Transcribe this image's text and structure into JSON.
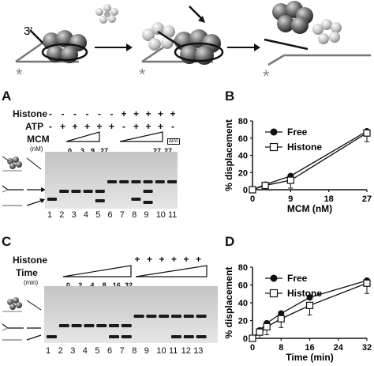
{
  "top_schematic": {
    "three_prime_label": "3'",
    "star_label": "*"
  },
  "panel_A": {
    "letter": "A",
    "rows": [
      {
        "label": "Histone",
        "signs": [
          "-",
          "-",
          "-",
          "-",
          "-",
          "-",
          "+",
          "+",
          "+",
          "+",
          "+",
          "+"
        ]
      },
      {
        "label": "ATP",
        "signs": [
          "-",
          "+",
          "+",
          "+",
          "+",
          "+",
          "-",
          "+",
          "+",
          "+",
          "-",
          "+"
        ]
      }
    ],
    "mcm_label": "MCM",
    "mcm_unit": "(nM)",
    "mcm_values": [
      "0",
      "3",
      "9",
      "27",
      "",
      "",
      "27",
      "27"
    ],
    "mcm_last_box": "ΔPA",
    "lane_numbers": [
      "1",
      "2",
      "3",
      "4",
      "5",
      "6",
      "7",
      "8",
      "9",
      "10",
      "11"
    ]
  },
  "panel_B": {
    "letter": "B",
    "chart_data": {
      "type": "line",
      "xlabel": "MCM (nM)",
      "ylabel": "% displacement",
      "xlim": [
        0,
        27
      ],
      "ylim": [
        0,
        80
      ],
      "xticks": [
        "0",
        "9",
        "18",
        "27"
      ],
      "yticks": [
        "0",
        "20",
        "40",
        "60",
        "80"
      ],
      "legend_position": "top-left",
      "series": [
        {
          "name": "Free",
          "marker": "filled-circle",
          "x": [
            0,
            3,
            9,
            27
          ],
          "y": [
            0,
            6,
            16,
            68
          ]
        },
        {
          "name": "Histone",
          "marker": "open-square",
          "x": [
            0,
            3,
            9,
            27
          ],
          "y": [
            0,
            5,
            11,
            66
          ]
        }
      ]
    }
  },
  "panel_C": {
    "letter": "C",
    "histone_label": "Histone",
    "time_label": "Time",
    "time_unit": "(min)",
    "histone_signs": [
      "+",
      "+",
      "+",
      "+",
      "+",
      "+"
    ],
    "time_values": [
      "0",
      "2",
      "4",
      "8",
      "16",
      "32"
    ],
    "lane_numbers": [
      "1",
      "2",
      "3",
      "4",
      "5",
      "6",
      "7",
      "8",
      "9",
      "10",
      "11",
      "12",
      "13"
    ]
  },
  "panel_D": {
    "letter": "D",
    "chart_data": {
      "type": "line",
      "xlabel": "Time (min)",
      "ylabel": "% displacement",
      "xlim": [
        0,
        32
      ],
      "ylim": [
        0,
        80
      ],
      "xticks": [
        "0",
        "8",
        "16",
        "24",
        "32"
      ],
      "yticks": [
        "0",
        "20",
        "40",
        "60",
        "80"
      ],
      "legend_position": "top-left",
      "series": [
        {
          "name": "Free",
          "marker": "filled-circle",
          "x": [
            0,
            2,
            4,
            8,
            16,
            32
          ],
          "y": [
            0,
            9,
            17,
            28,
            46,
            65
          ]
        },
        {
          "name": "Histone",
          "marker": "open-square",
          "x": [
            0,
            2,
            4,
            8,
            16,
            32
          ],
          "y": [
            0,
            7,
            13,
            22,
            37,
            62
          ]
        }
      ]
    }
  }
}
